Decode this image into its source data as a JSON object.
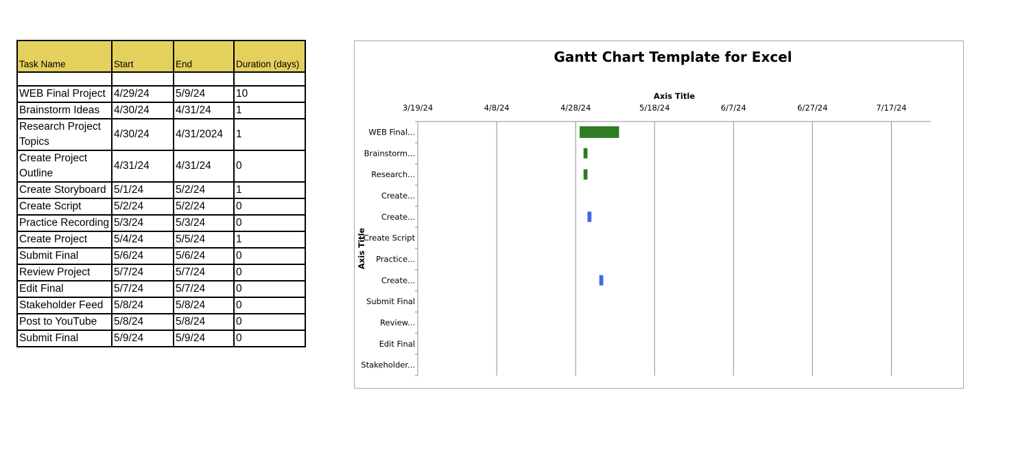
{
  "table": {
    "headers": [
      "Task Name",
      "Start",
      "End",
      "Duration (days)"
    ],
    "rows": [
      {
        "task": "",
        "start": "",
        "end": "",
        "duration": ""
      },
      {
        "task": "WEB Final Project",
        "start": "4/29/24",
        "end": "5/9/24",
        "duration": "10"
      },
      {
        "task": "Brainstorm Ideas",
        "start": "4/30/24",
        "end": "4/31/24",
        "duration": "1"
      },
      {
        "task": "Research Project Topics",
        "start": "4/30/24",
        "end": "4/31/2024",
        "duration": "1"
      },
      {
        "task": "Create Project Outline",
        "start": "4/31/24",
        "end": "4/31/24",
        "duration": "0"
      },
      {
        "task": "Create Storyboard",
        "start": "5/1/24",
        "end": "5/2/24",
        "duration": "1"
      },
      {
        "task": "Create Script",
        "start": "5/2/24",
        "end": "5/2/24",
        "duration": "0"
      },
      {
        "task": "Practice Recording",
        "start": "5/3/24",
        "end": "5/3/24",
        "duration": "0"
      },
      {
        "task": "Create Project",
        "start": "5/4/24",
        "end": "5/5/24",
        "duration": "1"
      },
      {
        "task": "Submit Final",
        "start": "5/6/24",
        "end": "5/6/24",
        "duration": "0"
      },
      {
        "task": "Review Project",
        "start": "5/7/24",
        "end": "5/7/24",
        "duration": "0"
      },
      {
        "task": "Edit Final",
        "start": "5/7/24",
        "end": "5/7/24",
        "duration": "0"
      },
      {
        "task": "Stakeholder Feed",
        "start": "5/8/24",
        "end": "5/8/24",
        "duration": "0"
      },
      {
        "task": "Post to YouTube",
        "start": "5/8/24",
        "end": "5/8/24",
        "duration": "0"
      },
      {
        "task": "Submit Final",
        "start": "5/9/24",
        "end": "5/9/24",
        "duration": "0"
      }
    ],
    "header_color": "#e4d15d"
  },
  "chart_data": {
    "type": "bar",
    "orientation": "horizontal-gantt",
    "title": "Gantt Chart Template for Excel",
    "xlabel": "Axis Title",
    "ylabel": "Axis Title",
    "x_axis_position": "top",
    "xlim": [
      "2024-03-19",
      "2024-07-27"
    ],
    "x_ticks": [
      "3/19/24",
      "4/8/24",
      "4/28/24",
      "5/18/24",
      "6/7/24",
      "6/27/24",
      "7/17/24"
    ],
    "x_tick_dates": [
      "2024-03-19",
      "2024-04-08",
      "2024-04-28",
      "2024-05-18",
      "2024-06-07",
      "2024-06-27",
      "2024-07-17"
    ],
    "grid": "vertical",
    "legend": "none",
    "categories": [
      "WEB Final...",
      "Brainstorm...",
      "Research...",
      "Create...",
      "Create...",
      "Create Script",
      "Practice...",
      "Create...",
      "Submit Final",
      "Review...",
      "Edit Final",
      "Stakeholder..."
    ],
    "bars": [
      {
        "start": "2024-04-29",
        "end": "2024-05-09",
        "color": "#2e7d23"
      },
      {
        "start": "2024-04-30",
        "end": "2024-05-01",
        "color": "#2e7d23"
      },
      {
        "start": "2024-04-30",
        "end": "2024-05-01",
        "color": "#2e7d23"
      },
      null,
      {
        "start": "2024-05-01",
        "end": "2024-05-02",
        "color": "#4169e1"
      },
      null,
      null,
      {
        "start": "2024-05-04",
        "end": "2024-05-05",
        "color": "#4169e1"
      },
      null,
      null,
      null,
      null
    ]
  }
}
